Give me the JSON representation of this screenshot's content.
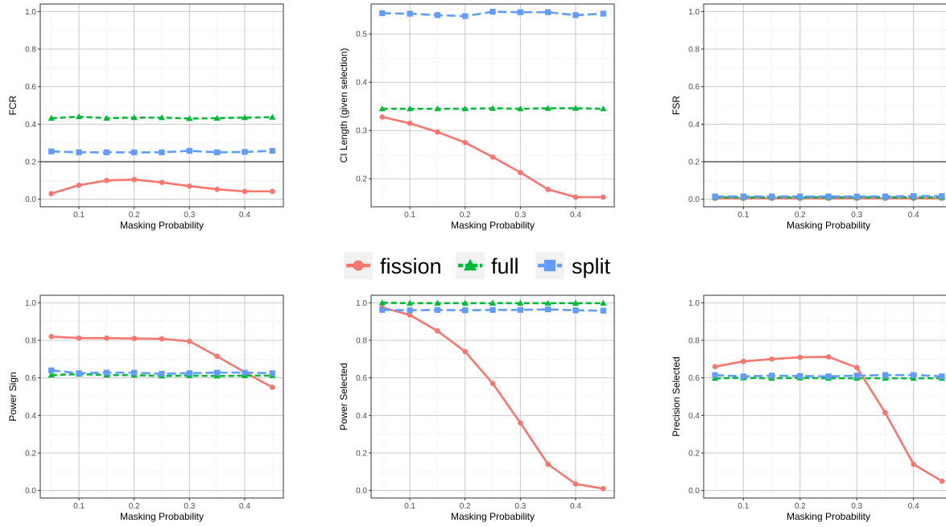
{
  "legend": {
    "position": "center",
    "items": [
      {
        "name": "fission",
        "color": "#F8766D",
        "marker": "circle",
        "dash": "solid"
      },
      {
        "name": "full",
        "color": "#00BA38",
        "marker": "triangle",
        "dash": "dashed"
      },
      {
        "name": "split",
        "color": "#619CFF",
        "marker": "square",
        "dash": "longdash"
      }
    ]
  },
  "chart_data": [
    {
      "type": "line",
      "xlabel": "Masking Probability",
      "ylabel": "FCR",
      "x": [
        0.05,
        0.1,
        0.15,
        0.2,
        0.25,
        0.3,
        0.35,
        0.4,
        0.45
      ],
      "xticks": [
        0.1,
        0.2,
        0.3,
        0.4
      ],
      "xlim": [
        0.03,
        0.47
      ],
      "ylim": [
        -0.04,
        1.04
      ],
      "yticks": [
        0.0,
        0.2,
        0.4,
        0.6,
        0.8,
        1.0
      ],
      "yticklabels": [
        "0.0",
        "0.2",
        "0.4",
        "0.6",
        "0.8",
        "1.0"
      ],
      "hline": 0.2,
      "grid": true,
      "series": [
        {
          "name": "fission",
          "values": [
            0.03,
            0.075,
            0.1,
            0.105,
            0.09,
            0.07,
            0.053,
            0.042,
            0.042
          ]
        },
        {
          "name": "full",
          "values": [
            0.432,
            0.44,
            0.432,
            0.435,
            0.435,
            0.43,
            0.432,
            0.435,
            0.437
          ]
        },
        {
          "name": "split",
          "values": [
            0.255,
            0.25,
            0.25,
            0.25,
            0.25,
            0.258,
            0.25,
            0.252,
            0.258
          ]
        }
      ]
    },
    {
      "type": "line",
      "xlabel": "Masking Probability",
      "ylabel": "CI Length (given selection)",
      "x": [
        0.05,
        0.1,
        0.15,
        0.2,
        0.25,
        0.3,
        0.35,
        0.4,
        0.45
      ],
      "xticks": [
        0.1,
        0.2,
        0.3,
        0.4
      ],
      "xlim": [
        0.03,
        0.47
      ],
      "ylim": [
        0.142,
        0.562
      ],
      "yticks": [
        0.2,
        0.3,
        0.4,
        0.5
      ],
      "yticklabels": [
        "0.2",
        "0.3",
        "0.4",
        "0.5"
      ],
      "grid": true,
      "series": [
        {
          "name": "fission",
          "values": [
            0.328,
            0.315,
            0.297,
            0.275,
            0.245,
            0.213,
            0.178,
            0.162,
            0.162
          ]
        },
        {
          "name": "full",
          "values": [
            0.345,
            0.345,
            0.345,
            0.345,
            0.346,
            0.345,
            0.346,
            0.346,
            0.345
          ]
        },
        {
          "name": "split",
          "values": [
            0.543,
            0.542,
            0.539,
            0.537,
            0.546,
            0.545,
            0.545,
            0.539,
            0.542
          ]
        }
      ]
    },
    {
      "type": "line",
      "xlabel": "Masking Probability",
      "ylabel": "FSR",
      "x": [
        0.05,
        0.1,
        0.15,
        0.2,
        0.25,
        0.3,
        0.35,
        0.4,
        0.45
      ],
      "xticks": [
        0.1,
        0.2,
        0.3,
        0.4
      ],
      "xlim": [
        0.03,
        0.47
      ],
      "ylim": [
        -0.04,
        1.04
      ],
      "yticks": [
        0.0,
        0.2,
        0.4,
        0.6,
        0.8,
        1.0
      ],
      "yticklabels": [
        "0.0",
        "0.2",
        "0.4",
        "0.6",
        "0.8",
        "1.0"
      ],
      "hline": 0.2,
      "grid": true,
      "series": [
        {
          "name": "fission",
          "values": [
            0.005,
            0.005,
            0.005,
            0.005,
            0.005,
            0.005,
            0.005,
            0.005,
            0.005
          ]
        },
        {
          "name": "full",
          "values": [
            0.01,
            0.01,
            0.01,
            0.01,
            0.01,
            0.01,
            0.01,
            0.01,
            0.01
          ]
        },
        {
          "name": "split",
          "values": [
            0.015,
            0.015,
            0.015,
            0.015,
            0.015,
            0.015,
            0.015,
            0.017,
            0.017
          ]
        }
      ]
    },
    {
      "type": "line",
      "xlabel": "Masking Probability",
      "ylabel": "Power Sign",
      "x": [
        0.05,
        0.1,
        0.15,
        0.2,
        0.25,
        0.3,
        0.35,
        0.4,
        0.45
      ],
      "xticks": [
        0.1,
        0.2,
        0.3,
        0.4
      ],
      "xlim": [
        0.03,
        0.47
      ],
      "ylim": [
        -0.04,
        1.04
      ],
      "yticks": [
        0.0,
        0.2,
        0.4,
        0.6,
        0.8,
        1.0
      ],
      "yticklabels": [
        "0.0",
        "0.2",
        "0.4",
        "0.6",
        "0.8",
        "1.0"
      ],
      "grid": true,
      "series": [
        {
          "name": "fission",
          "values": [
            0.82,
            0.812,
            0.812,
            0.81,
            0.808,
            0.795,
            0.715,
            0.63,
            0.55
          ]
        },
        {
          "name": "full",
          "values": [
            0.615,
            0.62,
            0.615,
            0.615,
            0.61,
            0.612,
            0.61,
            0.612,
            0.612
          ]
        },
        {
          "name": "split",
          "values": [
            0.64,
            0.625,
            0.628,
            0.628,
            0.622,
            0.625,
            0.628,
            0.628,
            0.625
          ]
        }
      ]
    },
    {
      "type": "line",
      "xlabel": "Masking Probability",
      "ylabel": "Power Selected",
      "x": [
        0.05,
        0.1,
        0.15,
        0.2,
        0.25,
        0.3,
        0.35,
        0.4,
        0.45
      ],
      "xticks": [
        0.1,
        0.2,
        0.3,
        0.4
      ],
      "xlim": [
        0.03,
        0.47
      ],
      "ylim": [
        -0.04,
        1.04
      ],
      "yticks": [
        0.0,
        0.2,
        0.4,
        0.6,
        0.8,
        1.0
      ],
      "yticklabels": [
        "0.0",
        "0.2",
        "0.4",
        "0.6",
        "0.8",
        "1.0"
      ],
      "grid": true,
      "series": [
        {
          "name": "fission",
          "values": [
            0.975,
            0.935,
            0.85,
            0.74,
            0.57,
            0.36,
            0.14,
            0.035,
            0.01
          ]
        },
        {
          "name": "full",
          "values": [
            1.0,
            0.998,
            0.998,
            0.998,
            0.998,
            0.998,
            0.998,
            0.998,
            0.998
          ]
        },
        {
          "name": "split",
          "values": [
            0.962,
            0.96,
            0.962,
            0.96,
            0.962,
            0.962,
            0.965,
            0.96,
            0.958
          ]
        }
      ]
    },
    {
      "type": "line",
      "xlabel": "Masking Probability",
      "ylabel": "Precision Selected",
      "x": [
        0.05,
        0.1,
        0.15,
        0.2,
        0.25,
        0.3,
        0.35,
        0.4,
        0.45
      ],
      "xticks": [
        0.1,
        0.2,
        0.3,
        0.4
      ],
      "xlim": [
        0.03,
        0.47
      ],
      "ylim": [
        -0.04,
        1.04
      ],
      "yticks": [
        0.0,
        0.2,
        0.4,
        0.6,
        0.8,
        1.0
      ],
      "yticklabels": [
        "0.0",
        "0.2",
        "0.4",
        "0.6",
        "0.8",
        "1.0"
      ],
      "grid": true,
      "series": [
        {
          "name": "fission",
          "values": [
            0.66,
            0.688,
            0.7,
            0.71,
            0.712,
            0.655,
            0.415,
            0.14,
            0.05
          ]
        },
        {
          "name": "full",
          "values": [
            0.598,
            0.6,
            0.598,
            0.6,
            0.598,
            0.598,
            0.598,
            0.598,
            0.598
          ]
        },
        {
          "name": "split",
          "values": [
            0.615,
            0.608,
            0.612,
            0.61,
            0.608,
            0.612,
            0.615,
            0.615,
            0.608
          ]
        }
      ]
    }
  ]
}
